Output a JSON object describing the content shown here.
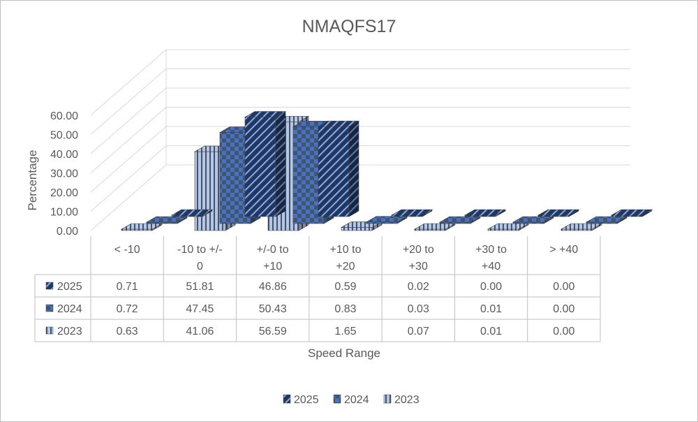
{
  "chart_data": {
    "type": "bar",
    "subtype": "3d-column",
    "title": "NMAQFS17",
    "xlabel": "Speed Range",
    "ylabel": "Percentage",
    "ylim": [
      0,
      60
    ],
    "ytick_step": 10,
    "ytick_labels": [
      "0.00",
      "10.00",
      "20.00",
      "30.00",
      "40.00",
      "50.00",
      "60.00"
    ],
    "grid": true,
    "legend_position": "bottom",
    "category_labels": [
      [
        "< -10"
      ],
      [
        "-10 to +/-",
        "0"
      ],
      [
        "+/-0 to",
        "+10"
      ],
      [
        "+10 to",
        "+20"
      ],
      [
        "+20 to",
        "+30"
      ],
      [
        "+30 to",
        "+40"
      ],
      [
        "> +40"
      ]
    ],
    "categories": [
      "< -10",
      "-10 to +/- 0",
      "+/-0 to +10",
      "+10 to +20",
      "+20 to +30",
      "+30 to +40",
      "> +40"
    ],
    "series": [
      {
        "name": "2025",
        "pattern": "diagonal",
        "color": "#1f3864",
        "stripe": "#8faadc",
        "values": [
          0.71,
          51.81,
          46.86,
          0.59,
          0.02,
          0.0,
          0.0
        ],
        "labels": [
          "0.71",
          "51.81",
          "46.86",
          "0.59",
          "0.02",
          "0.00",
          "0.00"
        ]
      },
      {
        "name": "2024",
        "pattern": "checker",
        "color": "#4472c4",
        "stripe": "#44546a",
        "values": [
          0.72,
          47.45,
          50.43,
          0.83,
          0.03,
          0.01,
          0.0
        ],
        "labels": [
          "0.72",
          "47.45",
          "50.43",
          "0.83",
          "0.03",
          "0.01",
          "0.00"
        ]
      },
      {
        "name": "2023",
        "pattern": "vertical",
        "color": "#b4c7e7",
        "stripe": "#44546a",
        "values": [
          0.63,
          41.06,
          56.59,
          1.65,
          0.07,
          0.01,
          0.0
        ],
        "labels": [
          "0.63",
          "41.06",
          "56.59",
          "1.65",
          "0.07",
          "0.01",
          "0.00"
        ]
      }
    ]
  }
}
